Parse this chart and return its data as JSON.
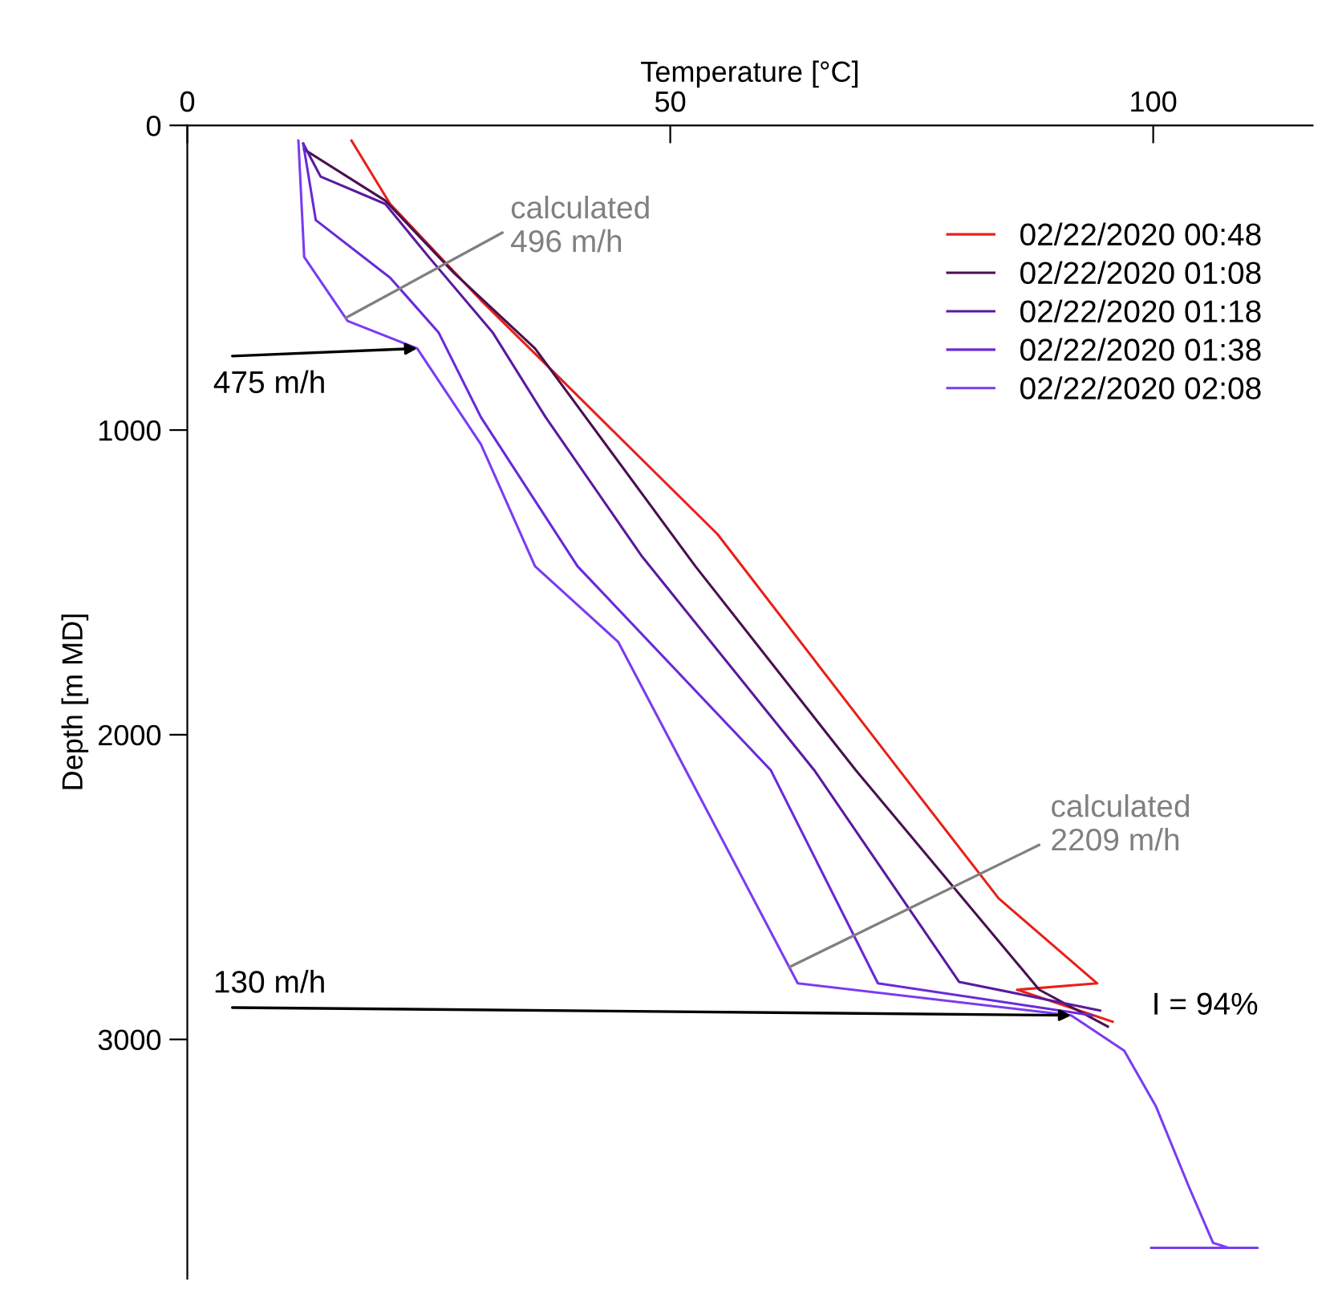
{
  "chart_data": {
    "type": "line",
    "xlabel": "Temperature [°C]",
    "ylabel": "Depth [m MD]",
    "xlim": [
      0,
      116.5
    ],
    "xticks": [
      0,
      50,
      100
    ],
    "ylim": [
      3785,
      0
    ],
    "yticks": [
      0,
      1000,
      2000,
      3000
    ],
    "grid": false,
    "legend": "top right",
    "marker": "none",
    "line_style": "solid",
    "series": [
      {
        "name": "02/22/2020 00:48",
        "color": "#e8201a",
        "x": [
          17,
          21,
          30.4,
          38.8,
          54.9,
          73.7,
          84,
          94.2,
          85.9,
          95.8
        ],
        "values": [
          50,
          258,
          574,
          837,
          1342,
          2116,
          2537,
          2816,
          2837,
          2942
        ]
      },
      {
        "name": "02/22/2020 01:08",
        "color": "#4a1050",
        "x": [
          12.1,
          20.5,
          27.6,
          36,
          52.6,
          69.2,
          88.2,
          95.3
        ],
        "values": [
          79,
          247,
          484,
          732,
          1447,
          2116,
          2837,
          2958
        ]
      },
      {
        "name": "02/22/2020 01:18",
        "color": "#5a1a9e",
        "x": [
          12,
          13.8,
          20.5,
          25,
          31.6,
          37.1,
          47.1,
          64.9,
          79.9,
          94.5
        ],
        "values": [
          60,
          168,
          258,
          432,
          679,
          958,
          1416,
          2116,
          2811,
          2905
        ]
      },
      {
        "name": "02/22/2020 01:38",
        "color": "#6a2ad8",
        "x": [
          12,
          13.3,
          21,
          26,
          30.4,
          40.4,
          60.4,
          71.5,
          93.7
        ],
        "values": [
          60,
          311,
          500,
          679,
          958,
          1447,
          2116,
          2816,
          2921
        ]
      },
      {
        "name": "02/22/2020 02:08",
        "color": "#7a3cf0",
        "x": [
          11.5,
          12.1,
          16.6,
          23.8,
          30.4,
          36,
          44.6,
          51.6,
          63.2,
          91.5,
          97,
          100.3,
          103.7,
          106.2,
          107.8,
          110.8,
          99.8
        ],
        "values": [
          50,
          432,
          642,
          732,
          1047,
          1447,
          1695,
          2116,
          2816,
          2921,
          3037,
          3221,
          3484,
          3668,
          3684,
          3684,
          3684
        ]
      }
    ],
    "annotations": [
      {
        "text": "calculated\n496 m/h",
        "x": 16.4,
        "y": 632
      },
      {
        "text": "calculated\n2209 m/h",
        "x": 62.3,
        "y": 2763
      },
      {
        "text": "475 m/h",
        "x": 23.8,
        "y": 732
      },
      {
        "text": "130 m/h",
        "x": 91.5,
        "y": 2921
      },
      "I = 94%"
    ]
  }
}
